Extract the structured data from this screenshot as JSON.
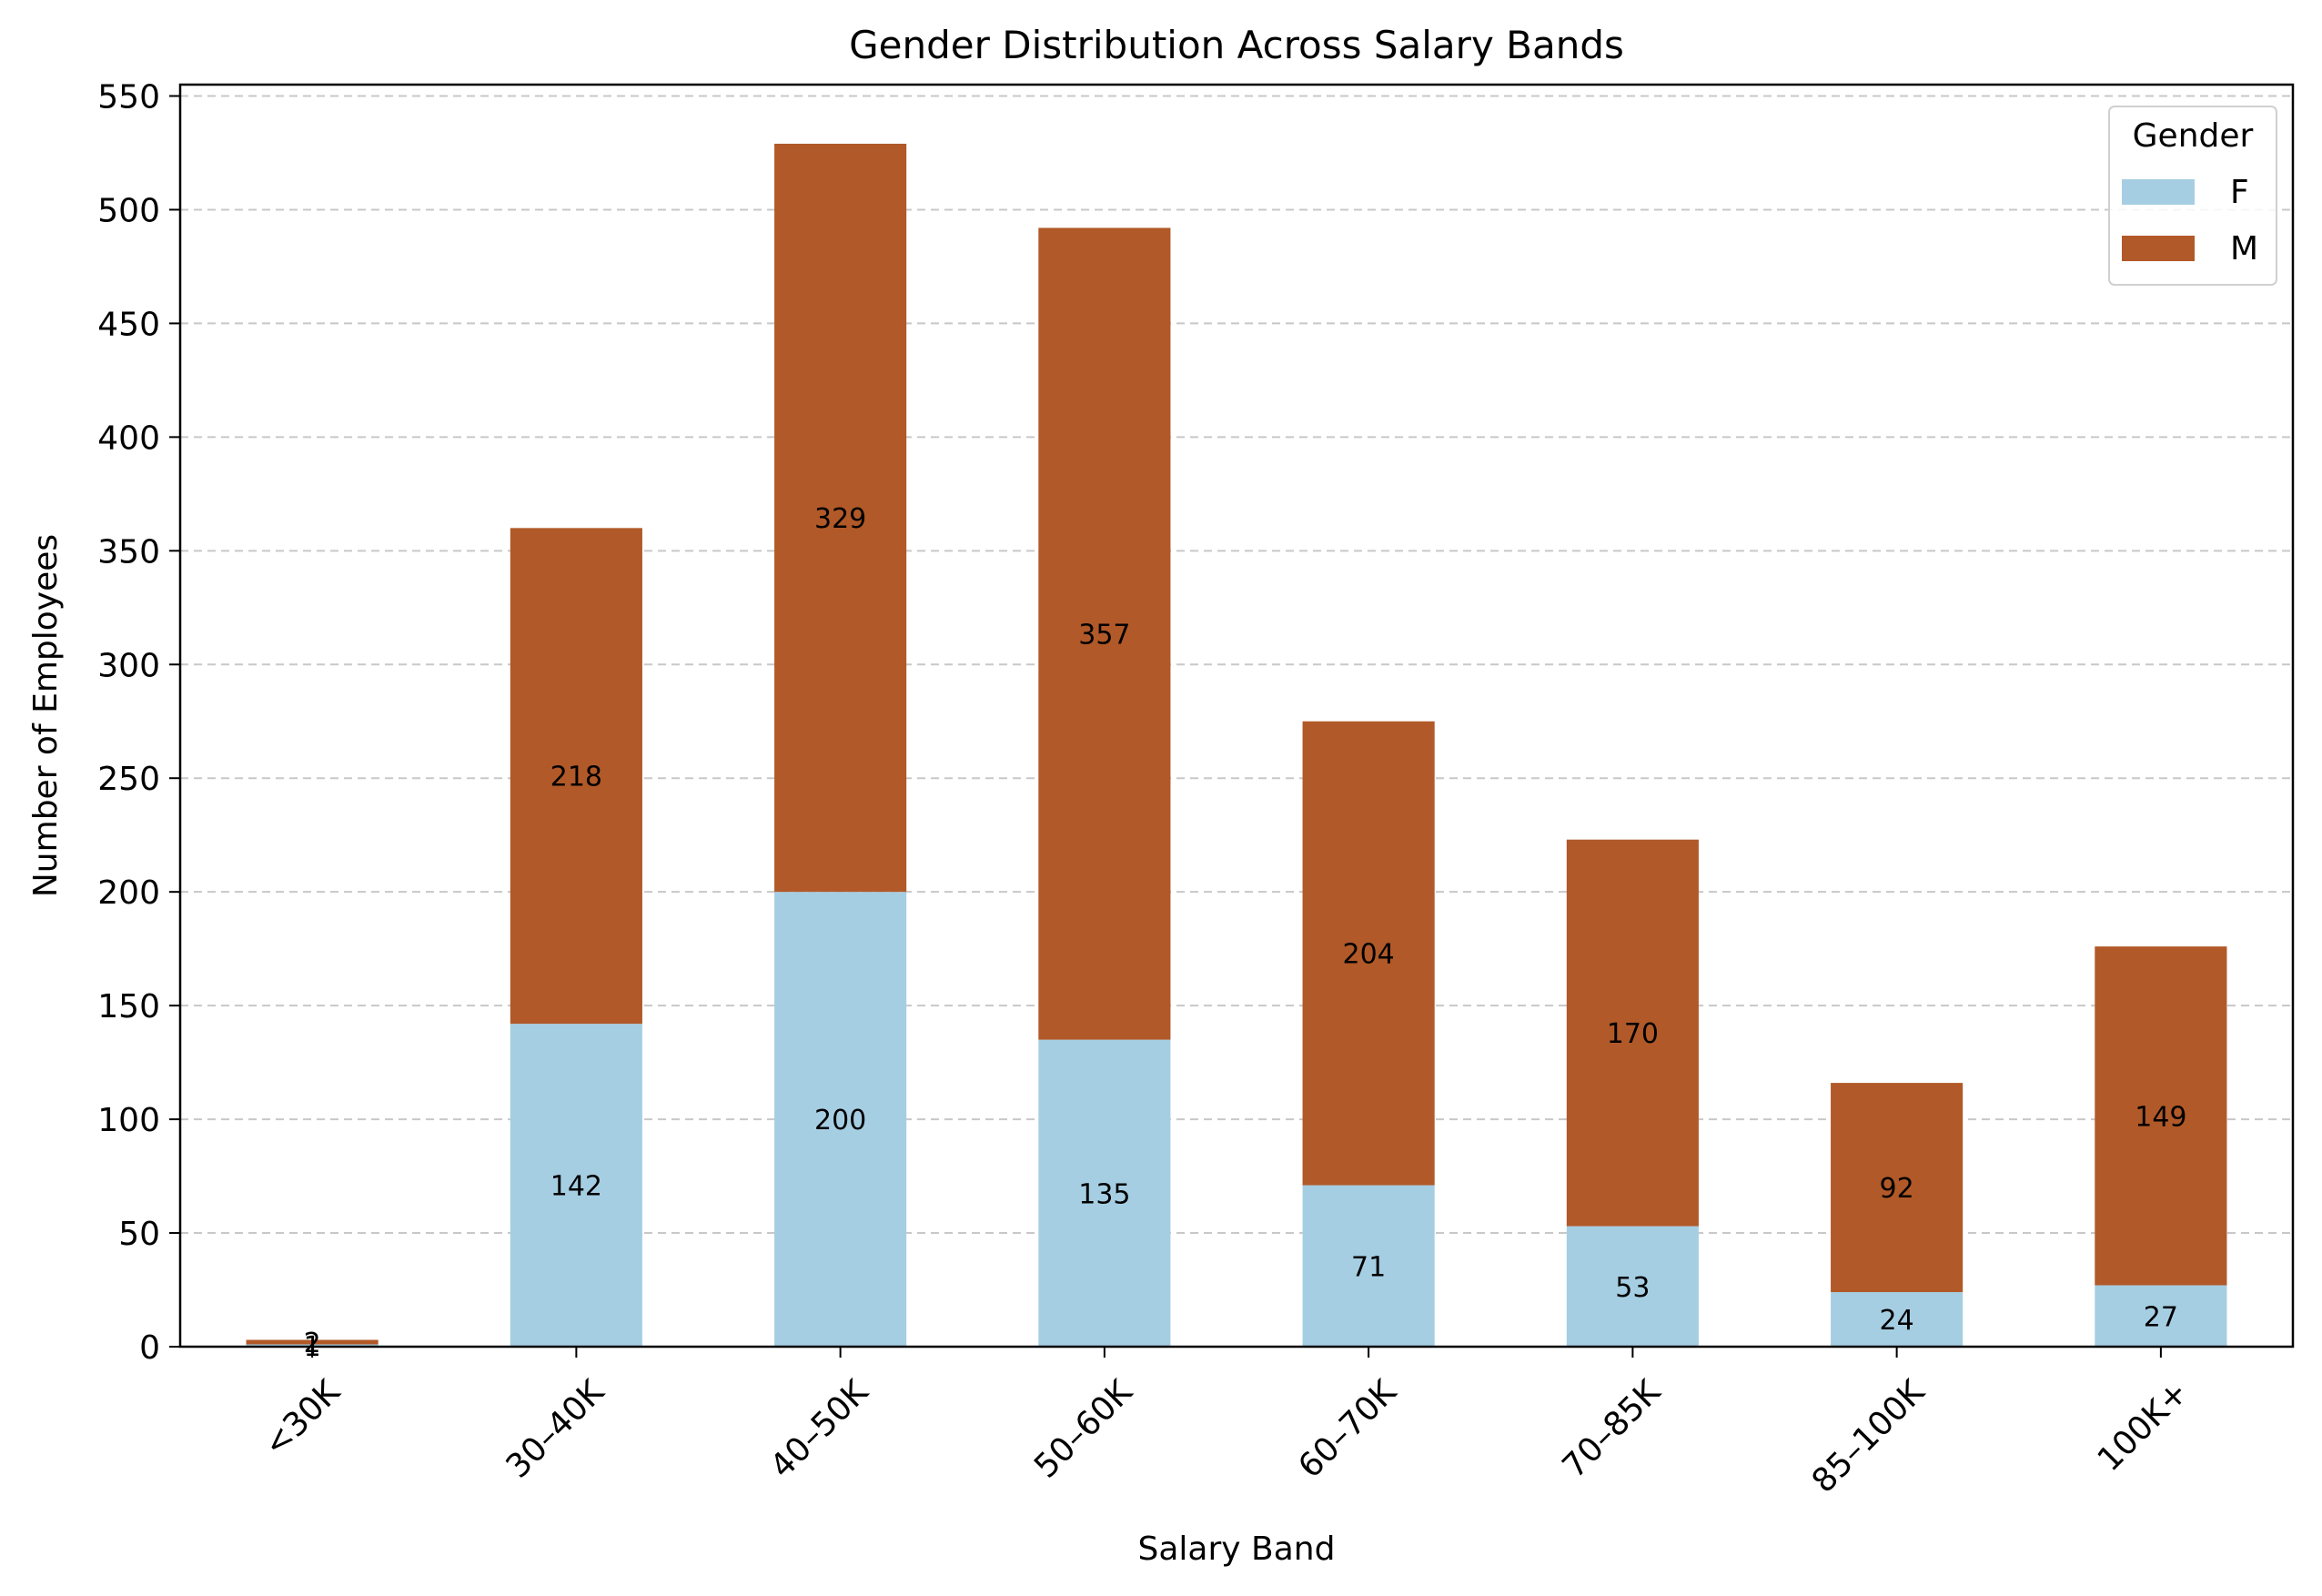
{
  "chart_data": {
    "type": "bar",
    "stacked": true,
    "title": "Gender Distribution Across Salary Bands",
    "xlabel": "Salary Band",
    "ylabel": "Number of Employees",
    "categories": [
      "<30K",
      "30–40K",
      "40–50K",
      "50–60K",
      "60–70K",
      "70–85K",
      "85–100K",
      "100K+"
    ],
    "series": [
      {
        "name": "F",
        "color": "#a6cee3",
        "values": [
          1,
          142,
          200,
          135,
          71,
          53,
          24,
          27
        ]
      },
      {
        "name": "M",
        "color": "#b15928",
        "values": [
          2,
          218,
          329,
          357,
          204,
          170,
          92,
          149
        ]
      }
    ],
    "ylim": [
      0,
      555
    ],
    "yticks": [
      0,
      50,
      100,
      150,
      200,
      250,
      300,
      350,
      400,
      450,
      500,
      550
    ],
    "grid": "y-dashed",
    "legend": {
      "title": "Gender",
      "position": "top-right"
    }
  }
}
